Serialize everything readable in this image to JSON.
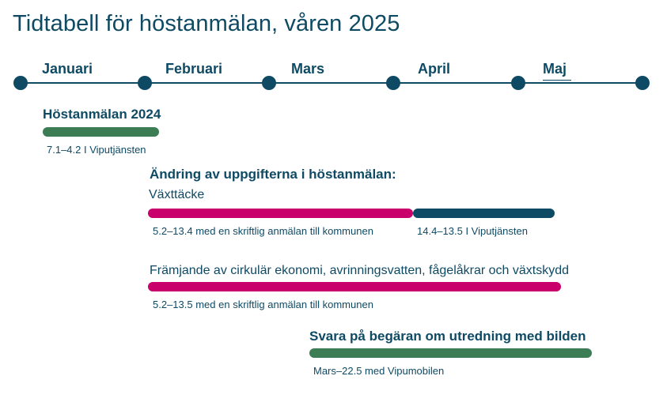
{
  "title": "Tidtabell för höstanmälan, våren 2025",
  "months": [
    "Januari",
    "Februari",
    "Mars",
    "April",
    "Maj"
  ],
  "sections": {
    "hostanmalan": {
      "heading": "Höstanmälan 2024",
      "note": "7.1–4.2 I Viputjänsten"
    },
    "andring": {
      "heading": "Ändring av uppgifterna i höstanmälan:",
      "vaxttacke": {
        "label": "Växttäcke",
        "note_pink": "5.2–13.4 med en skriftlig anmälan till kommunen",
        "note_navy": "14.4–13.5 I Viputjänsten"
      },
      "framjande": {
        "label": "Främjande av cirkulär ekonomi, avrinningsvatten, fågelåkrar och växtskydd",
        "note": "5.2–13.5 med en skriftlig anmälan till kommunen"
      }
    },
    "svara": {
      "heading": "Svara på begäran om utredning med bilden",
      "note": "Mars–22.5 med Vipumobilen"
    }
  },
  "colors": {
    "text": "#0e4a64",
    "green": "#3d7d55",
    "pink": "#c9006b",
    "navy": "#0e4a64"
  }
}
